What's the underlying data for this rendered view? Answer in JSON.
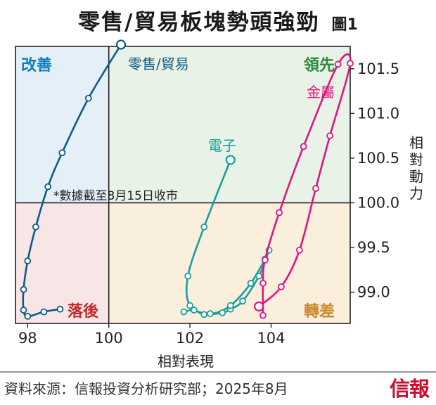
{
  "header": {
    "title": "零售/貿易板塊勢頭強勁",
    "figure_label": "圖1"
  },
  "footer": {
    "source": "資料來源：信報投資分析研究部；2025年8月",
    "logo": "信報"
  },
  "colors": {
    "retail": "#0f5b86",
    "electronics": "#17a09a",
    "metals": "#e0157f",
    "quad_improving": "#e4eff8",
    "quad_leading": "#e8f2e6",
    "quad_lagging": "#f8e6e6",
    "quad_weakening": "#faeedd"
  },
  "chart_data": {
    "type": "scatter",
    "subtype": "relative-rotation-graph",
    "xlabel": "相對表現",
    "ylabel": "相對動力",
    "xlim": [
      97.7,
      105.95
    ],
    "ylim": [
      98.65,
      101.75
    ],
    "x_ticks": [
      "98",
      "100",
      "102",
      "104"
    ],
    "x_tick_values": [
      98,
      100,
      102,
      104
    ],
    "y_ticks": [
      "101.5",
      "101.0",
      "100.5",
      "100.0",
      "99.5",
      "99.0"
    ],
    "y_tick_values": [
      101.5,
      101.0,
      100.5,
      100.0,
      99.5,
      99.0
    ],
    "x_center": 100.0,
    "y_center": 100.0,
    "quadrants": {
      "improving": "改善",
      "leading": "領先",
      "lagging": "落後",
      "weakening": "轉差"
    },
    "annotation": "*數據截至8月15日收市",
    "series": [
      {
        "name": "零售/貿易",
        "points": [
          [
            98.8,
            98.81
          ],
          [
            98.4,
            98.78
          ],
          [
            98.0,
            98.73
          ],
          [
            97.9,
            98.8
          ],
          [
            97.9,
            99.03
          ],
          [
            98.0,
            99.35
          ],
          [
            98.2,
            99.73
          ],
          [
            98.5,
            100.18
          ],
          [
            98.85,
            100.56
          ],
          [
            99.5,
            101.17
          ],
          [
            100.3,
            101.77
          ]
        ]
      },
      {
        "name": "電子",
        "points": [
          [
            101.85,
            98.78
          ],
          [
            102.1,
            98.8
          ],
          [
            102.35,
            98.75
          ],
          [
            102.8,
            98.77
          ],
          [
            103.0,
            98.81
          ],
          [
            103.3,
            98.9
          ],
          [
            103.7,
            99.18
          ],
          [
            103.95,
            99.47
          ],
          [
            103.85,
            99.37
          ],
          [
            103.5,
            99.1
          ],
          [
            103.0,
            98.85
          ],
          [
            102.5,
            98.76
          ],
          [
            102.0,
            98.85
          ],
          [
            101.95,
            99.18
          ],
          [
            102.35,
            99.73
          ],
          [
            103.0,
            100.48
          ]
        ]
      },
      {
        "name": "金屬",
        "points": [
          [
            103.8,
            98.74
          ],
          [
            103.8,
            99.1
          ],
          [
            103.85,
            99.36
          ],
          [
            104.2,
            99.89
          ],
          [
            104.8,
            100.63
          ],
          [
            105.65,
            101.55
          ],
          [
            105.95,
            101.56
          ],
          [
            105.45,
            100.75
          ],
          [
            105.1,
            100.16
          ],
          [
            104.7,
            99.47
          ],
          [
            104.25,
            99.06
          ],
          [
            103.7,
            98.84
          ]
        ]
      }
    ]
  }
}
